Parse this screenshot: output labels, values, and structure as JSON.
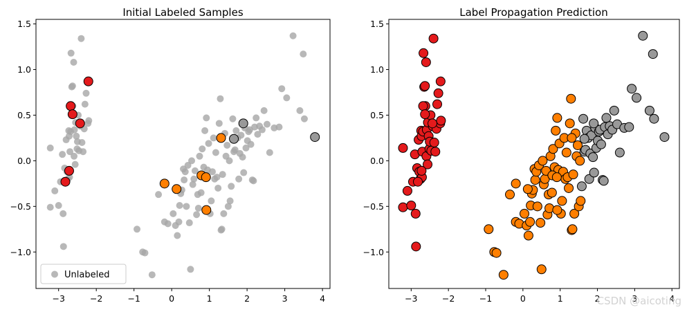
{
  "colors": {
    "unlabeled": "#a6a6a6",
    "class_0": "#e41a1c",
    "class_1": "#ff7f00",
    "class_2": "#999999",
    "marker_edge": "#000000"
  },
  "watermark": "CSDN @aicoting",
  "chart_data": [
    {
      "type": "scatter",
      "title": "Initial Labeled Samples",
      "xlabel": "",
      "ylabel": "",
      "xlim": [
        -3.6,
        4.2
      ],
      "ylim": [
        -1.4,
        1.55
      ],
      "xticks": [
        -3,
        -2,
        -1,
        0,
        1,
        2,
        3,
        4
      ],
      "yticks": [
        -1.0,
        -0.5,
        0.0,
        0.5,
        1.0,
        1.5
      ],
      "grid": false,
      "legend": {
        "position": "lower-left",
        "entries": [
          "Unlabeled"
        ]
      },
      "unlabeled_points": [
        [
          -3.22,
          0.14
        ],
        [
          -3.22,
          -0.51
        ],
        [
          -3.0,
          -0.49
        ],
        [
          -2.9,
          0.07
        ],
        [
          -2.88,
          -0.58
        ],
        [
          -2.87,
          -0.94
        ],
        [
          -2.84,
          -0.08
        ],
        [
          -2.8,
          0.23
        ],
        [
          -2.78,
          -0.12
        ],
        [
          -2.75,
          -0.2
        ],
        [
          -2.73,
          0.33
        ],
        [
          -2.72,
          0.27
        ],
        [
          -2.71,
          -0.18
        ],
        [
          -2.7,
          0.1
        ],
        [
          -2.68,
          0.32
        ],
        [
          -2.67,
          1.18
        ],
        [
          -2.65,
          0.81
        ],
        [
          -2.63,
          0.82
        ],
        [
          -2.62,
          0.6
        ],
        [
          -2.6,
          1.08
        ],
        [
          -2.59,
          0.05
        ],
        [
          -2.58,
          0.34
        ],
        [
          -2.56,
          -0.04
        ],
        [
          -2.55,
          0.42
        ],
        [
          -2.53,
          0.27
        ],
        [
          -2.51,
          0.13
        ],
        [
          -2.5,
          0.21
        ],
        [
          -2.48,
          0.5
        ],
        [
          -2.46,
          0.11
        ],
        [
          -2.42,
          0.38
        ],
        [
          -2.4,
          1.34
        ],
        [
          -2.38,
          0.2
        ],
        [
          -2.35,
          0.1
        ],
        [
          -2.32,
          0.35
        ],
        [
          -2.3,
          0.62
        ],
        [
          -2.27,
          0.74
        ],
        [
          -2.22,
          0.41
        ],
        [
          -2.2,
          0.44
        ],
        [
          -3.1,
          -0.33
        ],
        [
          -2.95,
          -0.23
        ],
        [
          -0.92,
          -0.75
        ],
        [
          -0.77,
          -1.0
        ],
        [
          -0.71,
          -1.01
        ],
        [
          -0.52,
          -1.25
        ],
        [
          -0.35,
          -0.37
        ],
        [
          -0.19,
          -0.67
        ],
        [
          -0.1,
          -0.69
        ],
        [
          0.04,
          -0.58
        ],
        [
          0.1,
          -0.71
        ],
        [
          0.15,
          -0.82
        ],
        [
          0.19,
          -0.67
        ],
        [
          0.21,
          -0.49
        ],
        [
          0.24,
          -0.36
        ],
        [
          0.27,
          -0.32
        ],
        [
          0.31,
          -0.09
        ],
        [
          0.33,
          -0.21
        ],
        [
          0.36,
          -0.12
        ],
        [
          0.39,
          -0.5
        ],
        [
          0.43,
          -0.05
        ],
        [
          0.47,
          -0.68
        ],
        [
          0.5,
          -1.19
        ],
        [
          0.53,
          0.0
        ],
        [
          0.56,
          -0.26
        ],
        [
          0.59,
          -0.2
        ],
        [
          0.62,
          -0.11
        ],
        [
          0.66,
          -0.59
        ],
        [
          0.69,
          -0.37
        ],
        [
          0.71,
          -0.52
        ],
        [
          0.74,
          0.05
        ],
        [
          0.78,
          -0.35
        ],
        [
          0.81,
          0.13
        ],
        [
          0.85,
          -0.07
        ],
        [
          0.88,
          0.33
        ],
        [
          0.92,
          0.47
        ],
        [
          0.95,
          -0.1
        ],
        [
          0.98,
          0.19
        ],
        [
          1.02,
          -0.58
        ],
        [
          1.05,
          -0.44
        ],
        [
          1.08,
          -0.12
        ],
        [
          1.11,
          0.25
        ],
        [
          1.14,
          -0.2
        ],
        [
          1.17,
          0.09
        ],
        [
          1.2,
          -0.18
        ],
        [
          1.23,
          -0.3
        ],
        [
          1.26,
          0.41
        ],
        [
          1.29,
          0.68
        ],
        [
          1.31,
          -0.76
        ],
        [
          1.33,
          -0.75
        ],
        [
          1.35,
          -0.15
        ],
        [
          1.38,
          -0.58
        ],
        [
          1.41,
          0.3
        ],
        [
          1.44,
          0.05
        ],
        [
          1.47,
          0.17
        ],
        [
          1.5,
          -0.5
        ],
        [
          1.53,
          0.0
        ],
        [
          1.55,
          -0.44
        ],
        [
          1.58,
          -0.28
        ],
        [
          1.62,
          0.46
        ],
        [
          1.65,
          0.1
        ],
        [
          1.68,
          0.12
        ],
        [
          1.71,
          0.33
        ],
        [
          1.75,
          0.25
        ],
        [
          1.78,
          -0.2
        ],
        [
          1.81,
          0.08
        ],
        [
          1.84,
          0.28
        ],
        [
          1.88,
          0.04
        ],
        [
          1.91,
          -0.13
        ],
        [
          1.94,
          0.36
        ],
        [
          1.97,
          0.14
        ],
        [
          2.01,
          0.22
        ],
        [
          2.04,
          0.32
        ],
        [
          2.07,
          0.34
        ],
        [
          2.1,
          0.18
        ],
        [
          2.14,
          -0.21
        ],
        [
          2.17,
          -0.22
        ],
        [
          2.2,
          0.37
        ],
        [
          2.24,
          0.47
        ],
        [
          2.28,
          0.29
        ],
        [
          2.33,
          0.38
        ],
        [
          2.4,
          0.34
        ],
        [
          2.45,
          0.55
        ],
        [
          2.53,
          0.4
        ],
        [
          2.6,
          0.09
        ],
        [
          2.72,
          0.36
        ],
        [
          2.85,
          0.37
        ],
        [
          2.92,
          0.79
        ],
        [
          3.05,
          0.69
        ],
        [
          3.22,
          1.37
        ],
        [
          3.4,
          0.55
        ],
        [
          3.49,
          1.17
        ],
        [
          3.52,
          0.46
        ]
      ],
      "labeled_points": [
        {
          "class": 0,
          "x": -2.21,
          "y": 0.87
        },
        {
          "class": 0,
          "x": -2.68,
          "y": 0.6
        },
        {
          "class": 0,
          "x": -2.63,
          "y": 0.51
        },
        {
          "class": 0,
          "x": -2.43,
          "y": 0.41
        },
        {
          "class": 0,
          "x": -2.72,
          "y": -0.11
        },
        {
          "class": 0,
          "x": -2.82,
          "y": -0.23
        },
        {
          "class": 1,
          "x": -0.19,
          "y": -0.25
        },
        {
          "class": 1,
          "x": 0.13,
          "y": -0.31
        },
        {
          "class": 1,
          "x": 0.79,
          "y": -0.16
        },
        {
          "class": 1,
          "x": 0.91,
          "y": -0.18
        },
        {
          "class": 1,
          "x": 0.92,
          "y": -0.54
        },
        {
          "class": 1,
          "x": 1.31,
          "y": 0.25
        },
        {
          "class": 2,
          "x": 1.65,
          "y": 0.24
        },
        {
          "class": 2,
          "x": 1.9,
          "y": 0.41
        },
        {
          "class": 2,
          "x": 3.8,
          "y": 0.26
        }
      ]
    },
    {
      "type": "scatter",
      "title": "Label Propagation Prediction",
      "xlabel": "",
      "ylabel": "",
      "xlim": [
        -3.6,
        4.2
      ],
      "ylim": [
        -1.4,
        1.55
      ],
      "xticks": [
        -3,
        -2,
        -1,
        0,
        1,
        2,
        3,
        4
      ],
      "yticks": [
        -1.0,
        -0.5,
        0.0,
        0.5,
        1.0,
        1.5
      ],
      "grid": false,
      "legend": null,
      "series": [
        {
          "class": 0,
          "points": [
            [
              -3.22,
              0.14
            ],
            [
              -3.22,
              -0.51
            ],
            [
              -3.0,
              -0.49
            ],
            [
              -2.9,
              0.07
            ],
            [
              -2.88,
              -0.58
            ],
            [
              -2.87,
              -0.94
            ],
            [
              -2.84,
              -0.08
            ],
            [
              -2.8,
              0.23
            ],
            [
              -2.78,
              -0.12
            ],
            [
              -2.75,
              -0.2
            ],
            [
              -2.73,
              0.33
            ],
            [
              -2.72,
              0.27
            ],
            [
              -2.71,
              -0.18
            ],
            [
              -2.7,
              0.1
            ],
            [
              -2.68,
              0.32
            ],
            [
              -2.67,
              1.18
            ],
            [
              -2.65,
              0.81
            ],
            [
              -2.63,
              0.82
            ],
            [
              -2.62,
              0.6
            ],
            [
              -2.6,
              1.08
            ],
            [
              -2.59,
              0.05
            ],
            [
              -2.58,
              0.34
            ],
            [
              -2.56,
              -0.04
            ],
            [
              -2.55,
              0.42
            ],
            [
              -2.53,
              0.27
            ],
            [
              -2.51,
              0.13
            ],
            [
              -2.5,
              0.21
            ],
            [
              -2.48,
              0.5
            ],
            [
              -2.46,
              0.11
            ],
            [
              -2.42,
              0.38
            ],
            [
              -2.4,
              1.34
            ],
            [
              -2.38,
              0.2
            ],
            [
              -2.35,
              0.1
            ],
            [
              -2.32,
              0.35
            ],
            [
              -2.3,
              0.62
            ],
            [
              -2.27,
              0.74
            ],
            [
              -2.22,
              0.41
            ],
            [
              -2.2,
              0.44
            ],
            [
              -3.1,
              -0.33
            ],
            [
              -2.95,
              -0.23
            ],
            [
              -2.21,
              0.87
            ],
            [
              -2.68,
              0.6
            ],
            [
              -2.63,
              0.51
            ],
            [
              -2.43,
              0.41
            ],
            [
              -2.72,
              -0.11
            ],
            [
              -2.82,
              -0.23
            ]
          ]
        },
        {
          "class": 1,
          "points": [
            [
              -0.92,
              -0.75
            ],
            [
              -0.77,
              -1.0
            ],
            [
              -0.71,
              -1.01
            ],
            [
              -0.52,
              -1.25
            ],
            [
              -0.35,
              -0.37
            ],
            [
              -0.19,
              -0.67
            ],
            [
              -0.1,
              -0.69
            ],
            [
              0.04,
              -0.58
            ],
            [
              0.1,
              -0.71
            ],
            [
              0.15,
              -0.82
            ],
            [
              0.19,
              -0.67
            ],
            [
              0.21,
              -0.49
            ],
            [
              0.24,
              -0.36
            ],
            [
              0.27,
              -0.32
            ],
            [
              0.31,
              -0.09
            ],
            [
              0.33,
              -0.21
            ],
            [
              0.36,
              -0.12
            ],
            [
              0.39,
              -0.5
            ],
            [
              0.43,
              -0.05
            ],
            [
              0.47,
              -0.68
            ],
            [
              0.5,
              -1.19
            ],
            [
              0.53,
              0.0
            ],
            [
              0.56,
              -0.26
            ],
            [
              0.59,
              -0.2
            ],
            [
              0.62,
              -0.11
            ],
            [
              0.66,
              -0.59
            ],
            [
              0.69,
              -0.37
            ],
            [
              0.71,
              -0.52
            ],
            [
              0.74,
              0.05
            ],
            [
              0.78,
              -0.35
            ],
            [
              0.81,
              0.13
            ],
            [
              0.85,
              -0.07
            ],
            [
              0.88,
              0.33
            ],
            [
              0.92,
              0.47
            ],
            [
              0.95,
              -0.1
            ],
            [
              0.98,
              0.19
            ],
            [
              1.02,
              -0.58
            ],
            [
              1.05,
              -0.44
            ],
            [
              1.08,
              -0.12
            ],
            [
              1.11,
              0.25
            ],
            [
              1.14,
              -0.2
            ],
            [
              1.17,
              0.09
            ],
            [
              1.2,
              -0.18
            ],
            [
              1.23,
              -0.3
            ],
            [
              1.26,
              0.41
            ],
            [
              1.29,
              0.68
            ],
            [
              1.31,
              -0.76
            ],
            [
              1.33,
              -0.75
            ],
            [
              1.35,
              -0.15
            ],
            [
              1.38,
              -0.58
            ],
            [
              1.41,
              0.3
            ],
            [
              1.44,
              0.05
            ],
            [
              1.47,
              0.17
            ],
            [
              1.5,
              -0.5
            ],
            [
              1.53,
              0.0
            ],
            [
              1.55,
              -0.44
            ],
            [
              -0.19,
              -0.25
            ],
            [
              0.13,
              -0.31
            ],
            [
              0.79,
              -0.16
            ],
            [
              0.91,
              -0.18
            ],
            [
              0.92,
              -0.54
            ],
            [
              1.31,
              0.25
            ]
          ]
        },
        {
          "class": 2,
          "points": [
            [
              1.58,
              -0.28
            ],
            [
              1.62,
              0.46
            ],
            [
              1.65,
              0.1
            ],
            [
              1.68,
              0.12
            ],
            [
              1.71,
              0.33
            ],
            [
              1.75,
              0.25
            ],
            [
              1.78,
              -0.2
            ],
            [
              1.81,
              0.08
            ],
            [
              1.84,
              0.28
            ],
            [
              1.88,
              0.04
            ],
            [
              1.91,
              -0.13
            ],
            [
              1.94,
              0.36
            ],
            [
              1.97,
              0.14
            ],
            [
              2.01,
              0.22
            ],
            [
              2.04,
              0.32
            ],
            [
              2.07,
              0.34
            ],
            [
              2.1,
              0.18
            ],
            [
              2.14,
              -0.21
            ],
            [
              2.17,
              -0.22
            ],
            [
              2.2,
              0.37
            ],
            [
              2.24,
              0.47
            ],
            [
              2.28,
              0.29
            ],
            [
              2.33,
              0.38
            ],
            [
              2.4,
              0.34
            ],
            [
              2.45,
              0.55
            ],
            [
              2.53,
              0.4
            ],
            [
              2.6,
              0.09
            ],
            [
              2.72,
              0.36
            ],
            [
              2.85,
              0.37
            ],
            [
              2.92,
              0.79
            ],
            [
              3.05,
              0.69
            ],
            [
              3.22,
              1.37
            ],
            [
              3.4,
              0.55
            ],
            [
              3.49,
              1.17
            ],
            [
              3.52,
              0.46
            ],
            [
              1.65,
              0.24
            ],
            [
              1.9,
              0.41
            ],
            [
              3.8,
              0.26
            ]
          ]
        }
      ]
    }
  ]
}
